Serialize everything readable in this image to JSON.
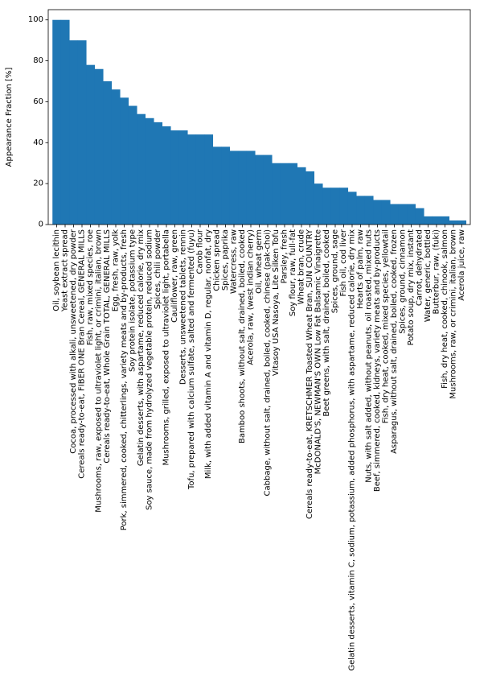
{
  "chart_data": {
    "type": "bar",
    "ylabel": "Appearance Fraction [%]",
    "ylim": [
      0,
      105
    ],
    "yticks": [
      "0",
      "20",
      "40",
      "60",
      "80",
      "100"
    ],
    "bar_color": "#1f77b4",
    "categories": [
      "Oil, soybean lecithin",
      "Yeast extract spread",
      "Cocoa, processed with alkali, unsweetened, dry powder",
      "Cereals ready-to-eat, FIBER ONE Bran Cereal, GENERAL MILLS",
      "Fish, raw, mixed species, roe",
      "Mushrooms, raw, exposed to ultraviolet light, or crimini, italian, brown",
      "Cereals ready-to-eat, Whole Grain TOTAL, GENERAL MILLS",
      "Egg, fresh, raw, yolk",
      "Pork, simmered, cooked, chitterlings, variety meats and by-products, fresh",
      "Soy protein isolate, potassium type",
      "Gelatin desserts, with aspartame, reduced calorie, dry mix",
      "Soy sauce, made from hydrolyzed vegetable protein, reduced sodium",
      "Spices, chili powder",
      "Mushrooms, grilled, exposed to ultraviolet light, portabella",
      "Cauliflower, raw, green",
      "Desserts, unsweetened tablets, rennin",
      "Tofu, prepared with calcium sulfate, salted and fermented (fuyu)",
      "Carob flour",
      "Milk, with added vitamin A and vitamin D, regular, nonfat, dry",
      "Chicken spread",
      "Spices, paprika",
      "Watercress, raw",
      "Bamboo shoots, without salt, drained, boiled, cooked",
      "Acerola, raw, (west indian cherry)",
      "Oil, wheat germ",
      "Cabbage, without salt, drained, boiled, cooked, chinese (pak-choi)",
      "Vitasoy USA Nasoya, Lite Silken Tofu",
      "Parsley, fresh",
      "Soy flour, raw, full-fat",
      "Wheat bran, crude",
      "Cereals ready-to-eat, KRETSCHMER Toasted Wheat Bran, SUN COUNTRY",
      "McDONALD'S, NEWMAN'S OWN Low Fat Balsamic Vinaigrette",
      "Beet greens, with salt, drained, boiled, cooked",
      "Spices, ground, sage",
      "Fish oil, cod liver",
      "Gelatin desserts, vitamin C, sodium, potassium, added phosphorus, with aspartame, reduced calorie, dry mix",
      "Hearts of palm, raw",
      "Nuts, with salt added, without peanuts, oil roasted, mixed nuts",
      "Beef, simmered, cooked, kidneys, variety meats and by-products",
      "Fish, dry heat, cooked, mixed species, yellowtail",
      "Asparagus, without salt, drained, boiled, cooked, frozen",
      "Spices, ground, cinnamon",
      "Potato soup, dry mix, instant",
      "Carrot, dehydrated",
      "Water, generic, bottled",
      "Butterbur, raw, (fuki)",
      "Fish, dry heat, cooked, chinook, salmon",
      "Mushrooms, raw, or crimini, italian, brown",
      "Acerola juice, raw"
    ],
    "values": [
      100,
      100,
      90,
      90,
      78,
      76,
      70,
      66,
      62,
      58,
      54,
      52,
      50,
      48,
      46,
      46,
      44,
      44,
      44,
      38,
      38,
      36,
      36,
      36,
      34,
      34,
      30,
      30,
      30,
      28,
      26,
      20,
      18,
      18,
      18,
      16,
      14,
      14,
      12,
      12,
      10,
      10,
      10,
      8,
      4,
      4,
      4,
      2,
      2
    ]
  }
}
